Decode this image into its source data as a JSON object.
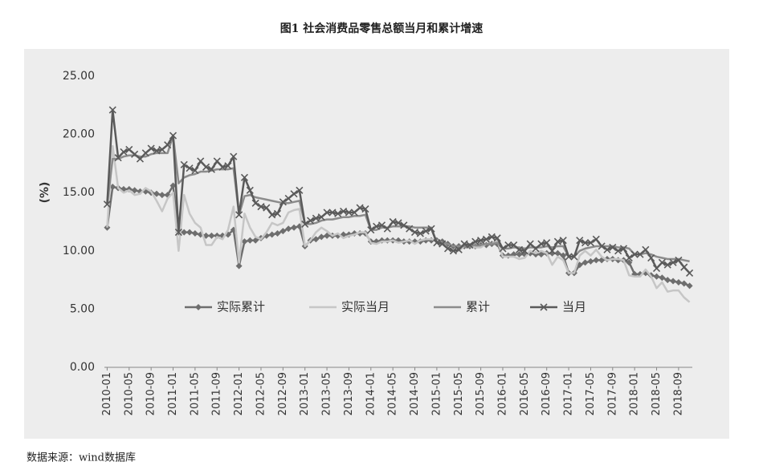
{
  "chart_data": {
    "type": "line",
    "title": "图1 社会消费品零售总额当月和累计增速",
    "y_label": "(%)",
    "source": "数据来源：wind数据库",
    "categories": [
      "2010-01",
      null,
      null,
      null,
      "2010-05",
      null,
      null,
      null,
      "2010-09",
      null,
      null,
      null,
      "2011-01",
      null,
      null,
      null,
      "2011-05",
      null,
      null,
      null,
      "2011-09",
      null,
      null,
      null,
      "2012-01",
      null,
      null,
      null,
      "2012-05",
      null,
      null,
      null,
      "2012-09",
      null,
      null,
      null,
      "2013-01",
      null,
      null,
      null,
      "2013-05",
      null,
      null,
      null,
      "2013-09",
      null,
      null,
      null,
      "2014-01",
      null,
      null,
      null,
      "2014-05",
      null,
      null,
      null,
      "2014-09",
      null,
      null,
      null,
      "2015-01",
      null,
      null,
      null,
      "2015-05",
      null,
      null,
      null,
      "2015-09",
      null,
      null,
      null,
      "2016-01",
      null,
      null,
      null,
      "2016-05",
      null,
      null,
      null,
      "2016-09",
      null,
      null,
      null,
      "2017-01",
      null,
      null,
      null,
      "2017-05",
      null,
      null,
      null,
      "2017-09",
      null,
      null,
      null,
      "2018-01",
      null,
      null,
      null,
      "2018-05",
      null,
      null,
      null,
      "2018-09",
      null,
      null
    ],
    "series": [
      {
        "name": "实际累计",
        "color": "#6e6e6e",
        "marker": "diamond",
        "values": [
          12.0,
          15.5,
          15.4,
          15.3,
          15.3,
          15.2,
          15.1,
          15.1,
          15.0,
          14.9,
          14.8,
          14.8,
          15.6,
          11.6,
          11.6,
          11.6,
          11.5,
          11.4,
          11.3,
          11.3,
          11.3,
          11.3,
          11.4,
          11.8,
          8.7,
          10.8,
          10.9,
          10.9,
          11.1,
          11.3,
          11.4,
          11.5,
          11.7,
          11.9,
          12.0,
          12.1,
          10.4,
          10.9,
          11.0,
          11.2,
          11.3,
          11.3,
          11.3,
          11.4,
          11.4,
          11.5,
          11.5,
          11.5,
          10.8,
          10.8,
          10.9,
          10.9,
          10.9,
          10.9,
          10.8,
          10.8,
          10.8,
          10.8,
          10.9,
          10.9,
          10.9,
          10.8,
          10.6,
          10.4,
          10.4,
          10.4,
          10.4,
          10.4,
          10.5,
          10.5,
          10.6,
          10.6,
          9.6,
          9.6,
          9.7,
          9.7,
          9.7,
          9.8,
          9.7,
          9.7,
          9.8,
          9.8,
          9.8,
          9.6,
          8.1,
          8.1,
          8.8,
          9.0,
          9.1,
          9.2,
          9.2,
          9.3,
          9.3,
          9.2,
          9.2,
          9.0,
          8.0,
          8.0,
          8.1,
          7.9,
          7.8,
          7.7,
          7.5,
          7.4,
          7.3,
          7.2,
          7.0
        ]
      },
      {
        "name": "实际当月",
        "color": "#c6c6c6",
        "marker": "none",
        "values": [
          12.0,
          19.0,
          15.4,
          15.0,
          15.2,
          14.8,
          14.9,
          15.4,
          15.1,
          14.3,
          13.4,
          14.5,
          15.0,
          10.0,
          14.8,
          13.2,
          12.4,
          12.0,
          10.5,
          10.5,
          11.2,
          11.0,
          11.8,
          13.8,
          9.0,
          13.2,
          12.0,
          11.2,
          11.0,
          11.6,
          12.4,
          12.2,
          12.4,
          13.3,
          13.5,
          13.6,
          10.4,
          10.9,
          11.6,
          12.0,
          11.7,
          11.3,
          11.5,
          11.1,
          11.3,
          11.4,
          11.6,
          11.6,
          10.7,
          10.6,
          10.8,
          10.8,
          10.9,
          10.7,
          10.8,
          10.9,
          10.6,
          10.9,
          11.0,
          11.0,
          10.9,
          10.7,
          10.2,
          10.0,
          10.0,
          10.4,
          10.4,
          10.3,
          10.3,
          10.6,
          10.6,
          10.9,
          9.5,
          9.5,
          9.5,
          9.3,
          9.4,
          10.0,
          9.8,
          10.0,
          9.8,
          8.8,
          9.5,
          9.2,
          8.1,
          8.1,
          9.6,
          10.0,
          9.6,
          10.1,
          9.5,
          9.2,
          9.3,
          9.3,
          9.2,
          7.9,
          7.8,
          7.8,
          8.4,
          7.8,
          6.8,
          7.3,
          6.5,
          6.6,
          6.6,
          6.0,
          5.6
        ]
      },
      {
        "name": "累计",
        "color": "#8c8c8c",
        "marker": "none",
        "values": [
          14.0,
          17.9,
          17.9,
          18.1,
          18.2,
          18.2,
          18.1,
          18.1,
          18.3,
          18.4,
          18.4,
          18.4,
          19.9,
          15.8,
          16.3,
          16.5,
          16.6,
          16.8,
          16.8,
          16.9,
          17.0,
          17.0,
          17.0,
          17.1,
          13.1,
          14.7,
          14.8,
          14.6,
          14.5,
          14.4,
          14.3,
          14.2,
          14.1,
          14.1,
          14.2,
          14.3,
          12.3,
          12.3,
          12.4,
          12.6,
          12.7,
          12.7,
          12.8,
          12.9,
          12.9,
          13.0,
          13.0,
          13.1,
          11.8,
          11.8,
          12.0,
          12.0,
          12.1,
          12.1,
          12.1,
          12.1,
          12.0,
          12.0,
          12.0,
          12.0,
          10.7,
          10.7,
          10.6,
          10.4,
          10.4,
          10.4,
          10.4,
          10.5,
          10.5,
          10.6,
          10.6,
          10.7,
          10.2,
          10.2,
          10.3,
          10.3,
          10.2,
          10.3,
          10.3,
          10.3,
          10.4,
          10.3,
          10.4,
          10.4,
          9.5,
          9.5,
          10.0,
          10.2,
          10.3,
          10.4,
          10.4,
          10.4,
          10.4,
          10.3,
          10.3,
          10.2,
          9.7,
          9.7,
          9.8,
          9.7,
          9.5,
          9.4,
          9.3,
          9.3,
          9.3,
          9.2,
          9.1
        ]
      },
      {
        "name": "当月",
        "color": "#5a5a5a",
        "marker": "x",
        "values": [
          14.0,
          22.1,
          18.0,
          18.5,
          18.7,
          18.3,
          17.9,
          18.4,
          18.8,
          18.6,
          18.7,
          19.1,
          19.9,
          11.6,
          17.4,
          17.1,
          16.9,
          17.7,
          17.2,
          17.0,
          17.7,
          17.2,
          17.3,
          18.1,
          13.1,
          16.3,
          15.2,
          14.1,
          13.8,
          13.7,
          13.1,
          13.2,
          14.2,
          14.5,
          14.9,
          15.2,
          12.3,
          12.6,
          12.8,
          12.9,
          13.3,
          13.3,
          13.2,
          13.4,
          13.3,
          13.3,
          13.7,
          13.6,
          11.8,
          12.1,
          12.2,
          11.9,
          12.5,
          12.4,
          12.2,
          11.9,
          11.6,
          11.5,
          11.7,
          11.9,
          10.7,
          10.6,
          10.2,
          10.0,
          10.1,
          10.6,
          10.5,
          10.8,
          10.9,
          11.0,
          11.2,
          11.1,
          10.2,
          10.5,
          10.5,
          10.1,
          10.0,
          10.6,
          10.2,
          10.6,
          10.7,
          10.0,
          10.8,
          10.9,
          9.5,
          9.5,
          10.9,
          10.7,
          10.7,
          11.0,
          10.4,
          10.1,
          10.3,
          10.0,
          10.2,
          9.4,
          9.7,
          9.7,
          10.1,
          9.4,
          8.5,
          9.0,
          8.8,
          9.0,
          9.2,
          8.6,
          8.1
        ]
      }
    ],
    "ylim": [
      0,
      25
    ],
    "yticks": [
      {
        "value": 0,
        "label": "0.00"
      },
      {
        "value": 5,
        "label": "5.00"
      },
      {
        "value": 10,
        "label": "10.00"
      },
      {
        "value": 15,
        "label": "15.00"
      },
      {
        "value": 20,
        "label": "20.00"
      },
      {
        "value": 25,
        "label": "25.00"
      }
    ],
    "grid": false,
    "legend": "inside-bottom"
  }
}
